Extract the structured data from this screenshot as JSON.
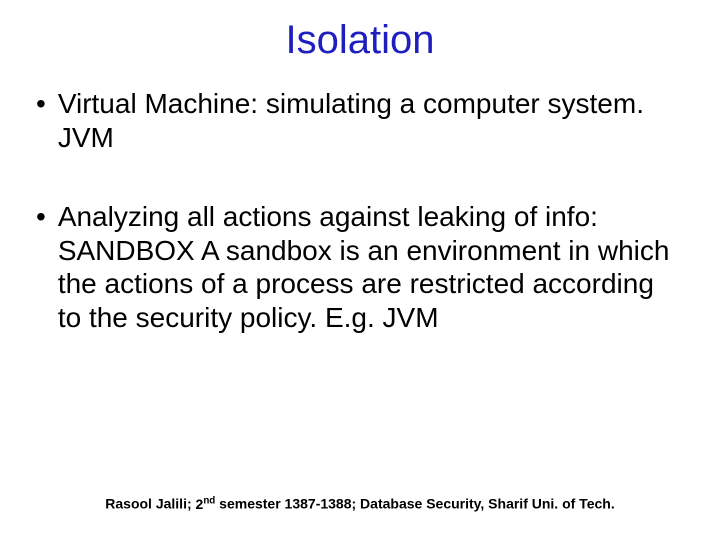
{
  "slide": {
    "title": "Isolation",
    "title_color": "#1f1fbf",
    "title_fontsize": 40,
    "background_color": "#ffffff",
    "body_fontsize": 28,
    "body_color": "#000000",
    "bullets": [
      {
        "marker": "•",
        "text": "Virtual Machine:  simulating a computer system. JVM"
      },
      {
        "marker": "•",
        "text": "Analyzing all actions against leaking of info: SANDBOX\nA sandbox is an environment in which the actions of a process are restricted according to the security policy.  E.g. JVM"
      }
    ],
    "footer": {
      "author": "Rasool Jalili;",
      "semester_ordinal": "2",
      "semester_suffix": "nd",
      "tail": " semester 1387-1388; Database Security, Sharif Uni. of Tech.",
      "fontsize": 14,
      "color": "#000000"
    }
  }
}
